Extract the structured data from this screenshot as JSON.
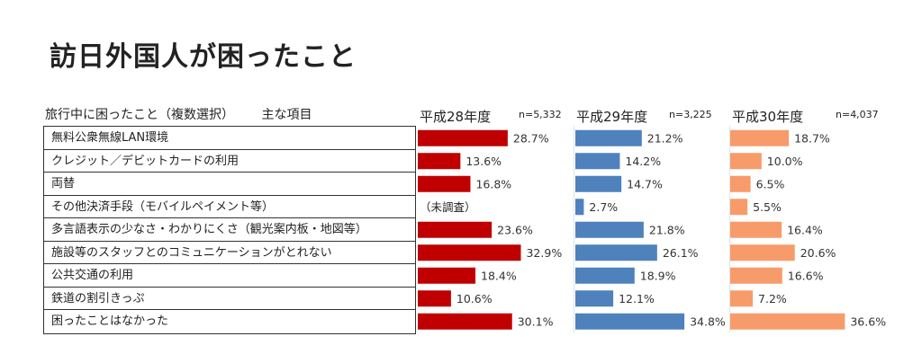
{
  "title": "訪日外国人が困ったこと",
  "table_header": {
    "question": "旅行中に困ったこと（複数選択）",
    "subheader": "主な項目"
  },
  "colors": {
    "h28": "#c00000",
    "h29": "#4f81bd",
    "h30": "#f79b6b"
  },
  "chart_data": {
    "type": "bar",
    "orientation": "horizontal",
    "categories": [
      "無料公衆無線LAN環境",
      "クレジット／デビットカードの利用",
      "両替",
      "その他決済手段（モバイルペイメント等）",
      "多言語表示の少なさ・わかりにくさ（観光案内板・地図等）",
      "施設等のスタッフとのコミュニケーションがとれない",
      "公共交通の利用",
      "鉄道の割引きっぷ",
      "困ったことはなかった"
    ],
    "series": [
      {
        "name": "平成28年度",
        "n_label": "n=5,332",
        "values": [
          28.7,
          13.6,
          16.8,
          null,
          23.6,
          32.9,
          18.4,
          10.6,
          30.1
        ],
        "labels": [
          "28.7%",
          "13.6%",
          "16.8%",
          "",
          "23.6%",
          "32.9%",
          "18.4%",
          "10.6%",
          "30.1%"
        ],
        "missing_label": "（未調査）"
      },
      {
        "name": "平成29年度",
        "n_label": "n=3,225",
        "values": [
          21.2,
          14.2,
          14.7,
          2.7,
          21.8,
          26.1,
          18.9,
          12.1,
          34.8
        ],
        "labels": [
          "21.2%",
          "14.2%",
          "14.7%",
          "2.7%",
          "21.8%",
          "26.1%",
          "18.9%",
          "12.1%",
          "34.8%"
        ]
      },
      {
        "name": "平成30年度",
        "n_label": "n=4,037",
        "values": [
          18.7,
          10.0,
          6.5,
          5.5,
          16.4,
          20.6,
          16.6,
          7.2,
          36.6
        ],
        "labels": [
          "18.7%",
          "10.0%",
          "6.5%",
          "5.5%",
          "16.4%",
          "20.6%",
          "16.6%",
          "7.2%",
          "36.6%"
        ]
      }
    ],
    "value_unit": "%",
    "grid": false,
    "legend": "none"
  }
}
